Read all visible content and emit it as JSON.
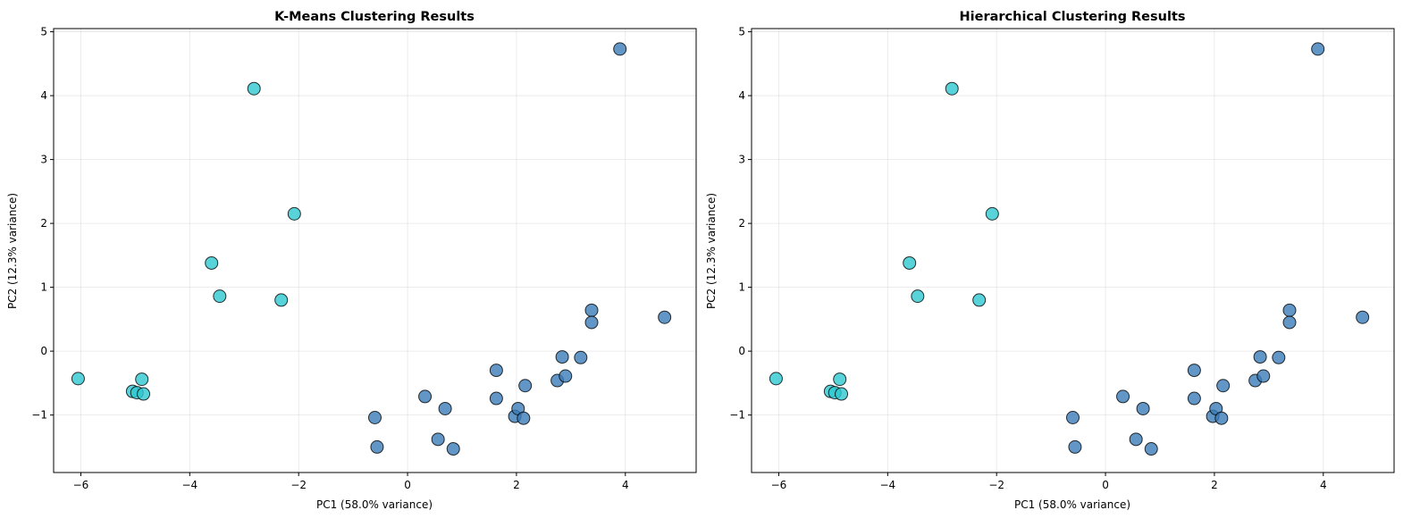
{
  "chart_data": [
    {
      "type": "scatter",
      "title": "K-Means Clustering Results",
      "xlabel": "PC1 (58.0% variance)",
      "ylabel": "PC2 (12.3% variance)",
      "xlim": [
        -6.5,
        5.3
      ],
      "ylim": [
        -1.9,
        5.05
      ],
      "xticks": [
        -6,
        -4,
        -2,
        0,
        2,
        4
      ],
      "yticks": [
        -1,
        0,
        1,
        2,
        3,
        4,
        5
      ],
      "grid": true,
      "colors": {
        "cluster_0": "#3a7cb8",
        "cluster_1": "#2ec8cf"
      },
      "points": [
        {
          "x": -6.05,
          "y": -0.43,
          "cluster": 1
        },
        {
          "x": -5.05,
          "y": -0.63,
          "cluster": 1
        },
        {
          "x": -4.97,
          "y": -0.65,
          "cluster": 1
        },
        {
          "x": -4.88,
          "y": -0.44,
          "cluster": 1
        },
        {
          "x": -4.85,
          "y": -0.67,
          "cluster": 1
        },
        {
          "x": -3.6,
          "y": 1.38,
          "cluster": 1
        },
        {
          "x": -3.45,
          "y": 0.86,
          "cluster": 1
        },
        {
          "x": -2.82,
          "y": 4.11,
          "cluster": 1
        },
        {
          "x": -2.32,
          "y": 0.8,
          "cluster": 1
        },
        {
          "x": -2.08,
          "y": 2.15,
          "cluster": 1
        },
        {
          "x": -0.6,
          "y": -1.04,
          "cluster": 0
        },
        {
          "x": -0.56,
          "y": -1.5,
          "cluster": 0
        },
        {
          "x": 0.32,
          "y": -0.71,
          "cluster": 0
        },
        {
          "x": 0.56,
          "y": -1.38,
          "cluster": 0
        },
        {
          "x": 0.69,
          "y": -0.9,
          "cluster": 0
        },
        {
          "x": 0.84,
          "y": -1.53,
          "cluster": 0
        },
        {
          "x": 1.63,
          "y": -0.3,
          "cluster": 0
        },
        {
          "x": 1.63,
          "y": -0.74,
          "cluster": 0
        },
        {
          "x": 1.97,
          "y": -1.02,
          "cluster": 0
        },
        {
          "x": 2.03,
          "y": -0.9,
          "cluster": 0
        },
        {
          "x": 2.13,
          "y": -1.05,
          "cluster": 0
        },
        {
          "x": 2.16,
          "y": -0.54,
          "cluster": 0
        },
        {
          "x": 2.75,
          "y": -0.46,
          "cluster": 0
        },
        {
          "x": 2.84,
          "y": -0.09,
          "cluster": 0
        },
        {
          "x": 2.9,
          "y": -0.39,
          "cluster": 0
        },
        {
          "x": 3.18,
          "y": -0.1,
          "cluster": 0
        },
        {
          "x": 3.38,
          "y": 0.64,
          "cluster": 0
        },
        {
          "x": 3.38,
          "y": 0.45,
          "cluster": 0
        },
        {
          "x": 3.9,
          "y": 4.73,
          "cluster": 0
        },
        {
          "x": 4.72,
          "y": 0.53,
          "cluster": 0
        }
      ]
    },
    {
      "type": "scatter",
      "title": "Hierarchical Clustering Results",
      "xlabel": "PC1 (58.0% variance)",
      "ylabel": "PC2 (12.3% variance)",
      "xlim": [
        -6.5,
        5.3
      ],
      "ylim": [
        -1.9,
        5.05
      ],
      "xticks": [
        -6,
        -4,
        -2,
        0,
        2,
        4
      ],
      "yticks": [
        -1,
        0,
        1,
        2,
        3,
        4,
        5
      ],
      "grid": true,
      "colors": {
        "cluster_0": "#3a7cb8",
        "cluster_1": "#2ec8cf"
      },
      "points": [
        {
          "x": -6.05,
          "y": -0.43,
          "cluster": 1
        },
        {
          "x": -5.05,
          "y": -0.63,
          "cluster": 1
        },
        {
          "x": -4.97,
          "y": -0.65,
          "cluster": 1
        },
        {
          "x": -4.88,
          "y": -0.44,
          "cluster": 1
        },
        {
          "x": -4.85,
          "y": -0.67,
          "cluster": 1
        },
        {
          "x": -3.6,
          "y": 1.38,
          "cluster": 1
        },
        {
          "x": -3.45,
          "y": 0.86,
          "cluster": 1
        },
        {
          "x": -2.82,
          "y": 4.11,
          "cluster": 1
        },
        {
          "x": -2.32,
          "y": 0.8,
          "cluster": 1
        },
        {
          "x": -2.08,
          "y": 2.15,
          "cluster": 1
        },
        {
          "x": -0.6,
          "y": -1.04,
          "cluster": 0
        },
        {
          "x": -0.56,
          "y": -1.5,
          "cluster": 0
        },
        {
          "x": 0.32,
          "y": -0.71,
          "cluster": 0
        },
        {
          "x": 0.56,
          "y": -1.38,
          "cluster": 0
        },
        {
          "x": 0.69,
          "y": -0.9,
          "cluster": 0
        },
        {
          "x": 0.84,
          "y": -1.53,
          "cluster": 0
        },
        {
          "x": 1.63,
          "y": -0.3,
          "cluster": 0
        },
        {
          "x": 1.63,
          "y": -0.74,
          "cluster": 0
        },
        {
          "x": 1.97,
          "y": -1.02,
          "cluster": 0
        },
        {
          "x": 2.03,
          "y": -0.9,
          "cluster": 0
        },
        {
          "x": 2.13,
          "y": -1.05,
          "cluster": 0
        },
        {
          "x": 2.16,
          "y": -0.54,
          "cluster": 0
        },
        {
          "x": 2.75,
          "y": -0.46,
          "cluster": 0
        },
        {
          "x": 2.84,
          "y": -0.09,
          "cluster": 0
        },
        {
          "x": 2.9,
          "y": -0.39,
          "cluster": 0
        },
        {
          "x": 3.18,
          "y": -0.1,
          "cluster": 0
        },
        {
          "x": 3.38,
          "y": 0.64,
          "cluster": 0
        },
        {
          "x": 3.38,
          "y": 0.45,
          "cluster": 0
        },
        {
          "x": 3.9,
          "y": 4.73,
          "cluster": 0
        },
        {
          "x": 4.72,
          "y": 0.53,
          "cluster": 0
        }
      ]
    }
  ]
}
